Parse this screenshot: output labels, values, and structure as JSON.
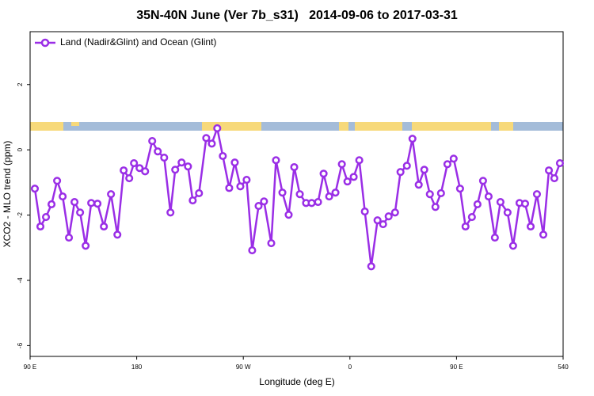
{
  "chart_data": {
    "type": "line",
    "title": "35N-40N June (Ver 7b_s31)   2014-09-06 to 2017-03-31",
    "x_label": "Longitude (deg E)",
    "y_label": "XCO2 - MLO trend (ppm)",
    "legend": "top-left",
    "xlim": [
      90,
      540
    ],
    "ylim": [
      -6.33,
      3.62
    ],
    "xticks": [
      {
        "value": 90,
        "label": "90 E"
      },
      180,
      {
        "value": 270,
        "label": "90 W"
      },
      {
        "value": 360,
        "label": "0"
      },
      {
        "value": 450,
        "label": "90 E"
      },
      540
    ],
    "yticks": [
      -6,
      -4,
      -2,
      0,
      2
    ],
    "x": [
      94.0,
      98.7,
      103.4,
      108.1,
      112.8,
      117.5,
      122.8,
      127.5,
      132.2,
      136.9,
      141.6,
      146.9,
      152.3,
      158.3,
      163.7,
      169.0,
      173.7,
      177.7,
      182.4,
      187.1,
      193.1,
      197.8,
      203.2,
      208.5,
      212.5,
      217.9,
      223.3,
      227.3,
      232.6,
      238.7,
      243.4,
      248.0,
      252.7,
      258.1,
      262.8,
      267.5,
      272.8,
      277.5,
      282.9,
      287.5,
      293.6,
      297.6,
      303.0,
      308.3,
      313.0,
      317.7,
      323.0,
      327.7,
      333.1,
      337.8,
      342.5,
      347.8,
      353.2,
      357.9,
      363.2,
      367.9,
      372.6,
      378.0,
      383.3,
      388.0,
      392.7,
      398.1,
      402.7,
      408.1,
      412.8,
      418.1,
      422.8,
      427.5,
      432.2,
      436.9,
      442.3,
      447.6,
      453.0,
      457.6,
      463.0,
      467.7,
      472.4,
      477.1,
      482.4,
      487.1,
      493.1,
      497.8,
      503.2,
      507.9,
      512.6,
      517.9,
      523.3,
      528.0,
      532.6,
      537.3
    ],
    "series": [
      {
        "name": "Land (Nadir&Glint) and Ocean (Glint)",
        "color": "#9a2ee6",
        "values": [
          -1.19,
          -2.35,
          -2.06,
          -1.67,
          -0.95,
          -1.43,
          -2.69,
          -1.6,
          -1.92,
          -2.94,
          -1.63,
          -1.65,
          -2.35,
          -1.36,
          -2.6,
          -0.63,
          -0.87,
          -0.41,
          -0.56,
          -0.66,
          0.27,
          -0.05,
          -0.24,
          -1.92,
          -0.61,
          -0.39,
          -0.51,
          -1.55,
          -1.33,
          0.36,
          0.19,
          0.66,
          -0.19,
          -1.17,
          -0.39,
          -1.12,
          -0.92,
          -3.08,
          -1.72,
          -1.58,
          -2.86,
          -0.32,
          -1.31,
          -1.99,
          -0.53,
          -1.36,
          -1.63,
          -1.63,
          -1.6,
          -0.73,
          -1.43,
          -1.31,
          -0.44,
          -0.97,
          -0.83,
          -0.32,
          -1.89,
          -3.57,
          -2.16,
          -2.28,
          -2.04,
          -1.92,
          -0.68,
          -0.49,
          0.34,
          -1.07,
          -0.61,
          -1.36,
          -1.75,
          -1.33,
          -0.44,
          -0.27,
          -1.19,
          -2.35,
          -2.06,
          -1.67,
          -0.95,
          -1.43,
          -2.69,
          -1.6,
          -1.92,
          -2.94,
          -1.63,
          -1.65,
          -2.35,
          -1.36,
          -2.6,
          -0.63,
          -0.87,
          -0.41
        ]
      }
    ]
  }
}
